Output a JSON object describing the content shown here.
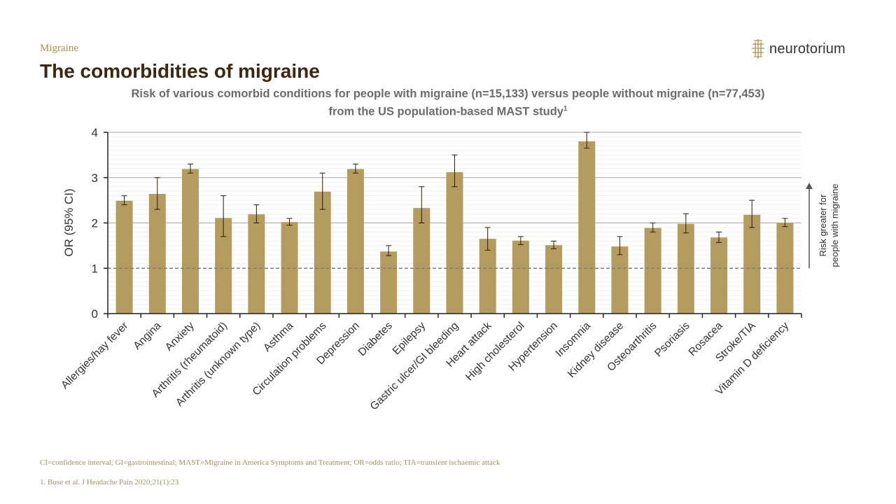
{
  "header": {
    "section": "Migraine",
    "title": "The comorbidities of migraine",
    "logo_text": "neurotorium"
  },
  "subtitle": {
    "line1": "Risk of various comorbid conditions for people with migraine (n=15,133) versus people without migraine (n=77,453)",
    "line2": "from the US population-based MAST study",
    "ref_mark": "1"
  },
  "chart_data": {
    "type": "bar",
    "ylabel": "OR (95% CI)",
    "ylim": [
      0,
      4
    ],
    "yticks": [
      0,
      1,
      2,
      3,
      4
    ],
    "reference_line": 1,
    "annotation": "Risk greater for people with migraine",
    "annotation_lines": [
      "Risk greater for",
      "people with migraine"
    ],
    "categories": [
      "Allergies/hay fever",
      "Angina",
      "Anxiety",
      "Arthritis (rheumatoid)",
      "Arthritis (unknown type)",
      "Asthma",
      "Circulation problems",
      "Depression",
      "Diabetes",
      "Epilepsy",
      "Gastric ulcer/GI bleeding",
      "Heart attack",
      "High cholesterol",
      "Hypertension",
      "Insomnia",
      "Kidney disease",
      "Osteoarthritis",
      "Psoriasis",
      "Rosacea",
      "Stroke/TIA",
      "Vitamin D deficiency"
    ],
    "values": [
      2.49,
      2.64,
      3.19,
      2.11,
      2.19,
      2.02,
      2.69,
      3.19,
      1.37,
      2.33,
      3.12,
      1.65,
      1.61,
      1.51,
      3.8,
      1.48,
      1.89,
      1.98,
      1.68,
      2.18,
      2.0
    ],
    "ci_lower": [
      2.4,
      2.3,
      3.1,
      1.7,
      2.0,
      1.95,
      2.3,
      3.1,
      1.28,
      2.0,
      2.8,
      1.4,
      1.52,
      1.43,
      3.65,
      1.3,
      1.8,
      1.78,
      1.57,
      1.9,
      1.92
    ],
    "ci_upper": [
      2.6,
      3.0,
      3.3,
      2.6,
      2.4,
      2.1,
      3.1,
      3.3,
      1.5,
      2.8,
      3.5,
      1.9,
      1.7,
      1.6,
      4.0,
      1.7,
      2.0,
      2.2,
      1.8,
      2.5,
      2.1
    ],
    "colors": {
      "bar": "#b49b5e",
      "axis": "#222222",
      "grid": "#a6a6a6",
      "reference": "#7f7f7f",
      "label": "#333333"
    }
  },
  "footnote": "CI=confidence interval; GI=gastrointestinal; MAST=Migraine in America Symptoms and Treatment; OR=odds ratio; TIA=transient ischaemic attack",
  "reference": "1. Buse et al. J Headache Pain 2020;21(1):23"
}
